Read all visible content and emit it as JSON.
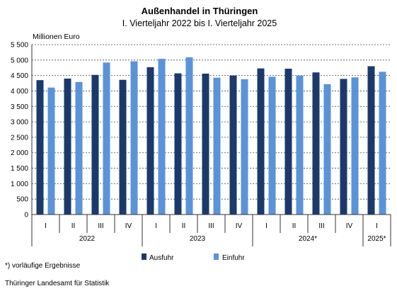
{
  "chart_data": {
    "type": "bar",
    "title": "Außenhandel in Thüringen",
    "subtitle": "I. Vierteljahr 2022 bis I. Vierteljahr 2025",
    "ylabel": "Millionen Euro",
    "ylim": [
      0,
      5500
    ],
    "yticks": [
      "0",
      "500",
      "1 000",
      "1 500",
      "2 000",
      "2 500",
      "3 000",
      "3 500",
      "4 000",
      "4 500",
      "5 000",
      "5 500"
    ],
    "grid": true,
    "legend_position": "bottom",
    "categories": [
      "I",
      "II",
      "III",
      "IV",
      "I",
      "II",
      "III",
      "IV",
      "I",
      "II",
      "III",
      "IV",
      "I"
    ],
    "groups": [
      {
        "label": "2022",
        "span": 4
      },
      {
        "label": "2023",
        "span": 4
      },
      {
        "label": "2024*",
        "span": 4
      },
      {
        "label": "2025*",
        "span": 1
      }
    ],
    "series": [
      {
        "name": "Ausfuhr",
        "color": "#1b3a6b",
        "values": [
          4350,
          4400,
          4520,
          4360,
          4770,
          4570,
          4560,
          4500,
          4730,
          4720,
          4600,
          4390,
          4800
        ]
      },
      {
        "name": "Einfuhr",
        "color": "#5b93d8",
        "values": [
          4110,
          4290,
          4920,
          4960,
          5040,
          5090,
          4430,
          4380,
          4460,
          4500,
          4220,
          4440,
          4620
        ]
      }
    ]
  },
  "footnote": "*) vorläufige Ergebnisse",
  "source": "Thüringer Landesamt für Statistik"
}
